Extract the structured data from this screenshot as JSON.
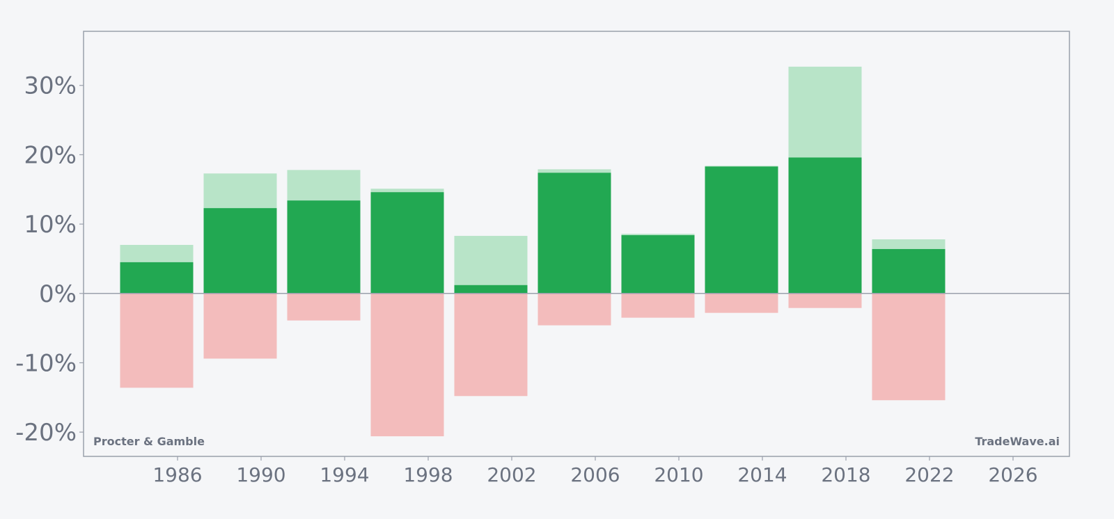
{
  "chart_data": {
    "type": "bar",
    "title": "",
    "xlabel": "",
    "ylabel": "",
    "x": [
      1985,
      1989,
      1993,
      1997,
      2001,
      2005,
      2009,
      2013,
      2017,
      2021
    ],
    "series": [
      {
        "values": [
          4.5,
          12.3,
          13.4,
          14.6,
          1.2,
          17.4,
          8.4,
          18.3,
          19.6,
          6.4
        ]
      },
      {
        "values": [
          7.0,
          17.3,
          17.8,
          15.1,
          8.3,
          17.9,
          8.6,
          18.4,
          32.7,
          7.8
        ]
      },
      {
        "values": [
          -13.6,
          -9.4,
          -3.9,
          -20.6,
          -14.8,
          -4.6,
          -3.5,
          -2.8,
          -2.1,
          -15.4
        ]
      }
    ],
    "ylim": [
      -23.5,
      37.8
    ],
    "xlim": [
      1981.5,
      2028.7
    ],
    "yticks": [
      -20,
      -10,
      0,
      10,
      20,
      30
    ],
    "ytick_labels": [
      "-20%",
      "-10%",
      "0%",
      "10%",
      "20%",
      "30%"
    ],
    "xticks": [
      1986,
      1990,
      1994,
      1998,
      2002,
      2006,
      2010,
      2014,
      2018,
      2022,
      2026
    ],
    "xtick_labels": [
      "1986",
      "1990",
      "1994",
      "1998",
      "2002",
      "2006",
      "2010",
      "2014",
      "2018",
      "2022",
      "2026"
    ],
    "grid": false,
    "legend": "none",
    "annotations": {
      "left": "Procter & Gamble",
      "right": "TradeWave.ai"
    },
    "colors": {
      "background": "#f5f6f8",
      "frame": "#9aa0ab",
      "zero_line": "#9aa0ab",
      "text": "#6b7280",
      "bar_dark": "#22a852",
      "bar_light": "#b8e4c8",
      "bar_negative": "#f3bcbc"
    }
  }
}
